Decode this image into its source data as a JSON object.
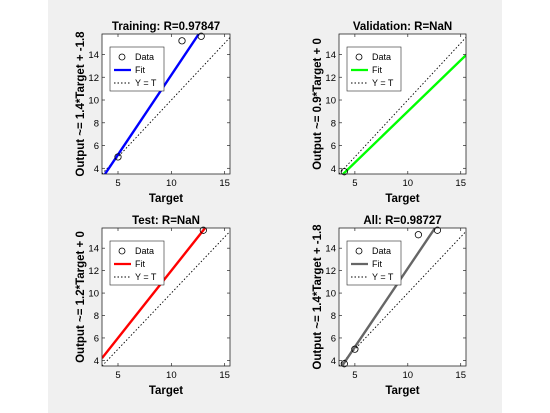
{
  "chart_data": [
    {
      "type": "scatter",
      "title": "Training: R=0.97847",
      "xlabel": "Target",
      "ylabel": "Output ~= 1.4*Target + -1.8",
      "xlim": [
        3.5,
        15.5
      ],
      "ylim": [
        3.5,
        15.8
      ],
      "xticks": [
        5,
        10,
        15
      ],
      "yticks": [
        4,
        6,
        8,
        10,
        12,
        14
      ],
      "points": [
        {
          "x": 5,
          "y": 5
        },
        {
          "x": 11,
          "y": 15.2
        },
        {
          "x": 12.8,
          "y": 15.6
        }
      ],
      "fit": {
        "slope": 1.4,
        "intercept": -1.8,
        "color": "#0000ff"
      },
      "legend": {
        "placement": "top-left",
        "entries": [
          "Data",
          "Fit",
          "Y = T"
        ]
      }
    },
    {
      "type": "scatter",
      "title": "Validation: R=NaN",
      "xlabel": "Target",
      "ylabel": "Output ~= 0.9*Target + 0",
      "xlim": [
        3.5,
        15.5
      ],
      "ylim": [
        3.5,
        15.8
      ],
      "xticks": [
        5,
        10,
        15
      ],
      "yticks": [
        4,
        6,
        8,
        10,
        12,
        14
      ],
      "points": [
        {
          "x": 4,
          "y": 3.7
        }
      ],
      "fit": {
        "slope": 0.9,
        "intercept": 0,
        "color": "#00ff00"
      },
      "legend": {
        "placement": "top-left",
        "entries": [
          "Data",
          "Fit",
          "Y = T"
        ]
      }
    },
    {
      "type": "scatter",
      "title": "Test: R=NaN",
      "xlabel": "Target",
      "ylabel": "Output ~= 1.2*Target + 0",
      "xlim": [
        3.5,
        15.5
      ],
      "ylim": [
        3.5,
        15.8
      ],
      "xticks": [
        5,
        10,
        15
      ],
      "yticks": [
        4,
        6,
        8,
        10,
        12,
        14
      ],
      "points": [
        {
          "x": 13,
          "y": 15.6
        }
      ],
      "fit": {
        "slope": 1.2,
        "intercept": 0,
        "color": "#ff0000"
      },
      "legend": {
        "placement": "top-left",
        "entries": [
          "Data",
          "Fit",
          "Y = T"
        ]
      }
    },
    {
      "type": "scatter",
      "title": "All: R=0.98727",
      "xlabel": "Target",
      "ylabel": "Output ~= 1.4*Target + -1.8",
      "xlim": [
        3.5,
        15.5
      ],
      "ylim": [
        3.5,
        15.8
      ],
      "xticks": [
        5,
        10,
        15
      ],
      "yticks": [
        4,
        6,
        8,
        10,
        12,
        14
      ],
      "points": [
        {
          "x": 4,
          "y": 3.7
        },
        {
          "x": 5,
          "y": 5
        },
        {
          "x": 11,
          "y": 15.2
        },
        {
          "x": 12.8,
          "y": 15.6
        }
      ],
      "fit": {
        "slope": 1.4,
        "intercept": -1.8,
        "color": "#666666"
      },
      "legend": {
        "placement": "top-left",
        "entries": [
          "Data",
          "Fit",
          "Y = T"
        ]
      }
    }
  ]
}
